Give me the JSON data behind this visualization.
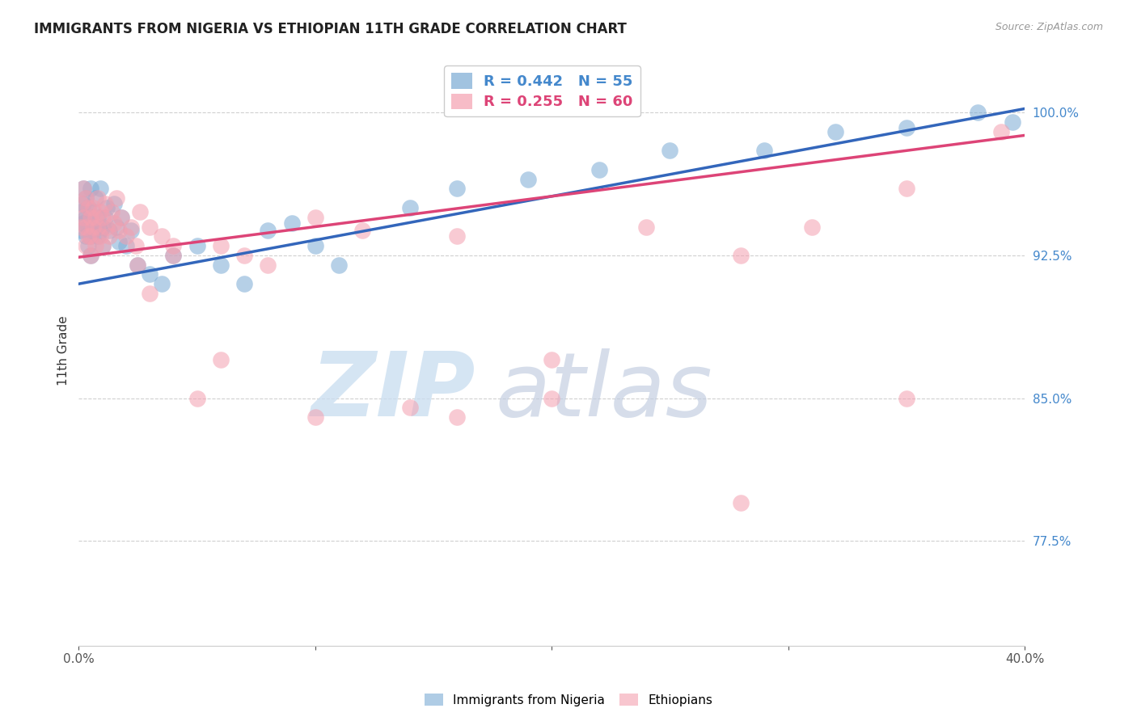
{
  "title": "IMMIGRANTS FROM NIGERIA VS ETHIOPIAN 11TH GRADE CORRELATION CHART",
  "source": "Source: ZipAtlas.com",
  "ylabel": "11th Grade",
  "ytick_labels": [
    "100.0%",
    "92.5%",
    "85.0%",
    "77.5%"
  ],
  "ytick_values": [
    1.0,
    0.925,
    0.85,
    0.775
  ],
  "xlim": [
    0.0,
    0.4
  ],
  "ylim": [
    0.72,
    1.03
  ],
  "legend_line1": "R = 0.442   N = 55",
  "legend_line2": "R = 0.255   N = 60",
  "nigeria_color": "#7aaad4",
  "ethiopia_color": "#f4a0b0",
  "nigeria_x": [
    0.001,
    0.001,
    0.002,
    0.002,
    0.002,
    0.003,
    0.003,
    0.003,
    0.004,
    0.004,
    0.004,
    0.005,
    0.005,
    0.005,
    0.005,
    0.006,
    0.006,
    0.007,
    0.007,
    0.008,
    0.008,
    0.009,
    0.009,
    0.01,
    0.01,
    0.011,
    0.012,
    0.013,
    0.015,
    0.016,
    0.017,
    0.018,
    0.02,
    0.022,
    0.025,
    0.03,
    0.035,
    0.04,
    0.05,
    0.06,
    0.07,
    0.08,
    0.09,
    0.1,
    0.11,
    0.14,
    0.16,
    0.19,
    0.22,
    0.25,
    0.29,
    0.32,
    0.35,
    0.38,
    0.395
  ],
  "nigeria_y": [
    0.948,
    0.938,
    0.952,
    0.942,
    0.96,
    0.945,
    0.935,
    0.955,
    0.95,
    0.94,
    0.93,
    0.96,
    0.945,
    0.935,
    0.925,
    0.938,
    0.948,
    0.955,
    0.94,
    0.945,
    0.935,
    0.96,
    0.938,
    0.94,
    0.93,
    0.945,
    0.95,
    0.938,
    0.952,
    0.94,
    0.932,
    0.945,
    0.93,
    0.938,
    0.92,
    0.915,
    0.91,
    0.925,
    0.93,
    0.92,
    0.91,
    0.938,
    0.942,
    0.93,
    0.92,
    0.95,
    0.96,
    0.965,
    0.97,
    0.98,
    0.98,
    0.99,
    0.992,
    1.0,
    0.995
  ],
  "ethiopia_x": [
    0.001,
    0.001,
    0.002,
    0.002,
    0.003,
    0.003,
    0.003,
    0.004,
    0.004,
    0.005,
    0.005,
    0.005,
    0.006,
    0.006,
    0.007,
    0.007,
    0.008,
    0.008,
    0.009,
    0.009,
    0.01,
    0.01,
    0.011,
    0.012,
    0.013,
    0.014,
    0.015,
    0.016,
    0.017,
    0.018,
    0.02,
    0.022,
    0.024,
    0.026,
    0.03,
    0.035,
    0.04,
    0.05,
    0.06,
    0.07,
    0.08,
    0.1,
    0.12,
    0.14,
    0.16,
    0.2,
    0.24,
    0.28,
    0.31,
    0.35,
    0.025,
    0.03,
    0.04,
    0.06,
    0.1,
    0.16,
    0.2,
    0.28,
    0.35,
    0.39
  ],
  "ethiopia_y": [
    0.952,
    0.94,
    0.96,
    0.945,
    0.955,
    0.94,
    0.93,
    0.95,
    0.935,
    0.945,
    0.935,
    0.925,
    0.95,
    0.94,
    0.945,
    0.93,
    0.955,
    0.94,
    0.948,
    0.935,
    0.945,
    0.93,
    0.952,
    0.94,
    0.935,
    0.948,
    0.942,
    0.955,
    0.938,
    0.945,
    0.935,
    0.94,
    0.93,
    0.948,
    0.94,
    0.935,
    0.93,
    0.85,
    0.93,
    0.925,
    0.92,
    0.945,
    0.938,
    0.845,
    0.935,
    0.87,
    0.94,
    0.925,
    0.94,
    0.96,
    0.92,
    0.905,
    0.925,
    0.87,
    0.84,
    0.84,
    0.85,
    0.795,
    0.85,
    0.99
  ],
  "nigeria_trend": [
    0.0,
    0.4,
    0.91,
    1.002
  ],
  "ethiopia_trend": [
    0.0,
    0.4,
    0.924,
    0.988
  ],
  "watermark_zip": "ZIP",
  "watermark_atlas": "atlas",
  "bg_color": "#ffffff",
  "grid_color": "#d0d0d0",
  "axis_label_color": "#4488cc",
  "spine_color": "#cccccc"
}
